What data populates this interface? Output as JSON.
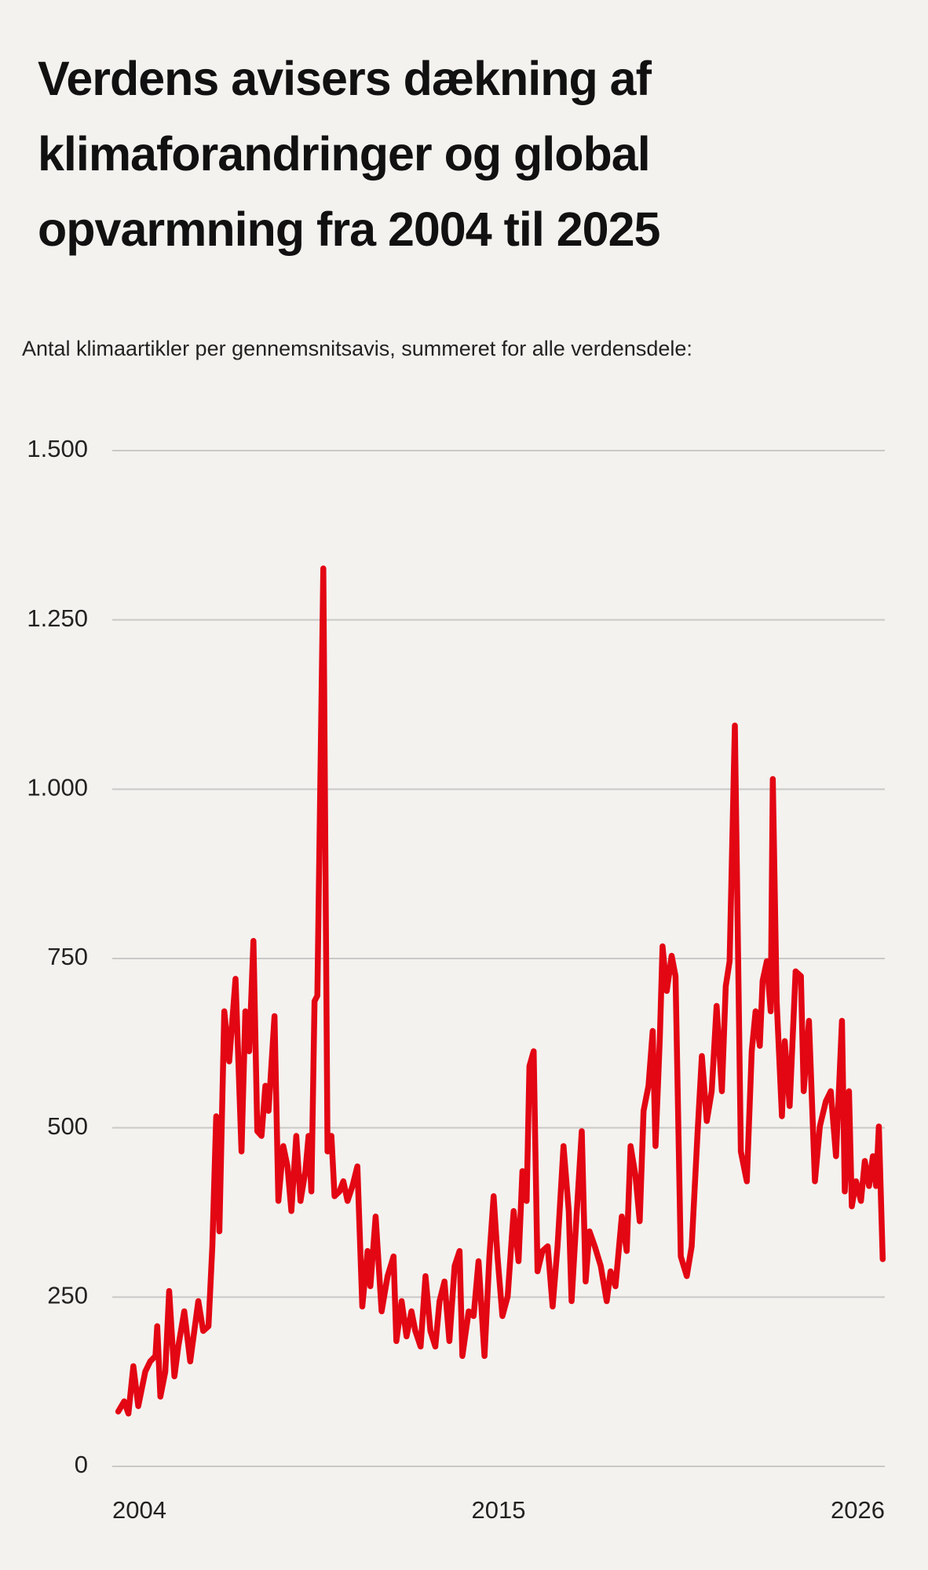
{
  "chart_data": {
    "type": "line",
    "title": "Verdens avisers dækning af klimaforandringer og global opvarmning fra 2004 til 2025",
    "subtitle": "Antal klimaartikler per gennemsnitsavis, summeret for alle verdensdele:",
    "x": [
      2004.17,
      2004.34,
      2004.46,
      2004.6,
      2004.74,
      2004.94,
      2005.08,
      2005.23,
      2005.28,
      2005.37,
      2005.51,
      2005.62,
      2005.77,
      2005.88,
      2006.05,
      2006.22,
      2006.45,
      2006.59,
      2006.74,
      2006.85,
      2006.96,
      2007.05,
      2007.19,
      2007.33,
      2007.51,
      2007.68,
      2007.79,
      2007.9,
      2008.02,
      2008.13,
      2008.25,
      2008.36,
      2008.45,
      2008.62,
      2008.73,
      2008.87,
      2008.99,
      2009.1,
      2009.24,
      2009.36,
      2009.5,
      2009.59,
      2009.67,
      2009.76,
      2009.84,
      2010.01,
      2010.13,
      2010.24,
      2010.33,
      2010.47,
      2010.58,
      2010.7,
      2010.84,
      2010.98,
      2011.12,
      2011.27,
      2011.35,
      2011.5,
      2011.67,
      2011.84,
      2012.01,
      2012.09,
      2012.24,
      2012.38,
      2012.52,
      2012.63,
      2012.78,
      2012.92,
      2013.06,
      2013.2,
      2013.32,
      2013.46,
      2013.6,
      2013.75,
      2013.89,
      2013.97,
      2014.15,
      2014.29,
      2014.43,
      2014.6,
      2014.74,
      2014.86,
      2014.97,
      2015.11,
      2015.26,
      2015.43,
      2015.57,
      2015.68,
      2015.8,
      2015.88,
      2016.0,
      2016.11,
      2016.25,
      2016.4,
      2016.54,
      2016.68,
      2016.85,
      2017.0,
      2017.08,
      2017.22,
      2017.37,
      2017.48,
      2017.59,
      2017.74,
      2017.91,
      2018.08,
      2018.19,
      2018.33,
      2018.51,
      2018.65,
      2018.76,
      2018.9,
      2019.02,
      2019.13,
      2019.27,
      2019.39,
      2019.47,
      2019.59,
      2019.67,
      2019.79,
      2019.93,
      2020.04,
      2020.19,
      2020.36,
      2020.5,
      2020.67,
      2020.79,
      2020.93,
      2021.07,
      2021.21,
      2021.36,
      2021.47,
      2021.58,
      2021.73,
      2021.9,
      2022.07,
      2022.21,
      2022.32,
      2022.44,
      2022.52,
      2022.64,
      2022.75,
      2022.81,
      2022.92,
      2023.07,
      2023.15,
      2023.29,
      2023.46,
      2023.61,
      2023.69,
      2023.84,
      2024.01,
      2024.15,
      2024.32,
      2024.46,
      2024.61,
      2024.78,
      2024.86,
      2024.98,
      2025.06,
      2025.18,
      2025.32,
      2025.43,
      2025.55,
      2025.66,
      2025.75,
      2025.83,
      2025.94
    ],
    "series": [
      {
        "color": "#e30613",
        "values": [
          81,
          96,
          78,
          148,
          89,
          140,
          155,
          163,
          207,
          103,
          140,
          259,
          133,
          177,
          229,
          155,
          244,
          200,
          207,
          325,
          517,
          347,
          672,
          598,
          720,
          465,
          672,
          613,
          776,
          495,
          488,
          562,
          525,
          665,
          392,
          473,
          443,
          377,
          488,
          392,
          436,
          488,
          406,
          687,
          695,
          1326,
          465,
          488,
          399,
          406,
          421,
          392,
          414,
          443,
          236,
          318,
          266,
          369,
          229,
          281,
          310,
          185,
          244,
          192,
          229,
          200,
          177,
          281,
          200,
          177,
          244,
          273,
          185,
          296,
          318,
          163,
          229,
          222,
          303,
          163,
          310,
          399,
          310,
          222,
          251,
          377,
          303,
          436,
          392,
          591,
          613,
          288,
          318,
          325,
          236,
          325,
          473,
          377,
          244,
          369,
          495,
          273,
          347,
          325,
          296,
          244,
          288,
          266,
          369,
          318,
          473,
          429,
          362,
          525,
          562,
          643,
          473,
          628,
          768,
          702,
          754,
          724,
          310,
          281,
          325,
          495,
          606,
          510,
          554,
          680,
          554,
          709,
          746,
          1094,
          465,
          421,
          613,
          672,
          621,
          717,
          746,
          672,
          1015,
          687,
          517,
          628,
          532,
          731,
          724,
          554,
          658,
          421,
          502,
          539,
          554,
          458,
          658,
          406,
          554,
          384,
          421,
          392,
          451,
          414,
          458,
          414,
          502,
          306
        ]
      }
    ],
    "xlim": [
      2004,
      2026
    ],
    "xticks": [
      2004,
      2015,
      2026
    ],
    "ylim": [
      0,
      1500
    ],
    "yticks": [
      0,
      250,
      500,
      750,
      {
        "value": 1000,
        "label": "1.000"
      },
      {
        "value": 1250,
        "label": "1.250"
      },
      {
        "value": 1500,
        "label": "1.500"
      }
    ],
    "grid": true
  }
}
